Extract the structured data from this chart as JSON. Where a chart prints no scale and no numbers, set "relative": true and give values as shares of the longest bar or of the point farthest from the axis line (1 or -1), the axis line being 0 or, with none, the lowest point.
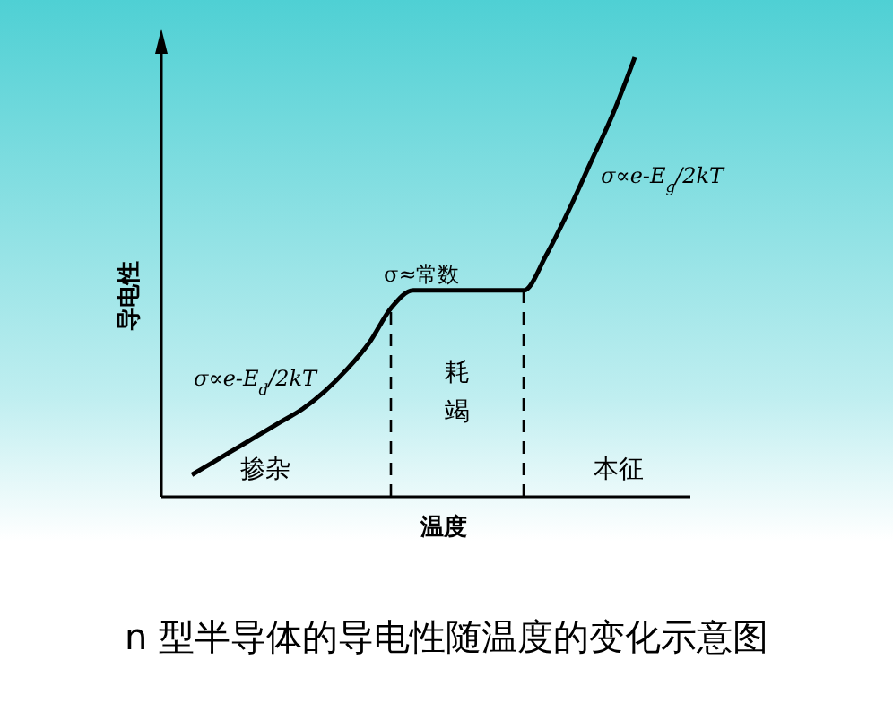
{
  "chart_data": {
    "type": "line",
    "title": "n 型半导体的导电性随温度的变化示意图",
    "xlabel": "温度",
    "ylabel": "导电性",
    "relative": true,
    "color": "#000000",
    "marker": "none",
    "line_style": "solid",
    "categories": [
      null,
      null,
      null,
      null,
      null,
      null,
      null,
      null,
      null,
      null,
      null,
      null,
      null,
      null,
      null,
      null,
      null,
      null,
      null,
      null,
      null
    ],
    "values": [
      0.05,
      0.08,
      0.11,
      0.14,
      0.17,
      0.2,
      0.24,
      0.29,
      0.35,
      0.43,
      0.47,
      0.47,
      0.47,
      0.47,
      0.47,
      0.47,
      0.55,
      0.65,
      0.76,
      0.87,
      1
    ],
    "annotations": [
      "σ∝e-E$_{d}$/2kT",
      "σ≈常数",
      "σ∝e-E$_{g}$/2kT",
      "掺杂",
      "本征",
      "耗竭"
    ]
  }
}
